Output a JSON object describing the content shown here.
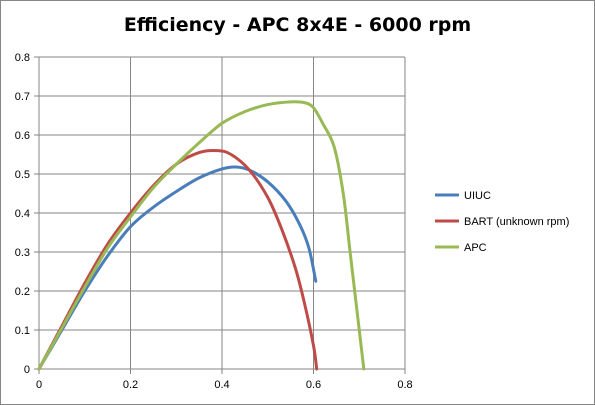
{
  "chart_data": {
    "type": "line",
    "title": "Efficiency - APC 8x4E - 6000 rpm",
    "xlabel": "",
    "ylabel": "",
    "xlim": [
      0,
      0.8
    ],
    "ylim": [
      0,
      0.8
    ],
    "x_ticks": [
      "0",
      "0.2",
      "0.4",
      "0.6",
      "0.8"
    ],
    "y_ticks": [
      "0",
      "0.1",
      "0.2",
      "0.3",
      "0.4",
      "0.5",
      "0.6",
      "0.7",
      "0.8"
    ],
    "grid": true,
    "legend_position": "right",
    "series": [
      {
        "name": "UIUC",
        "color": "#4a7ebb",
        "points": [
          [
            0,
            0
          ],
          [
            0.05,
            0.1
          ],
          [
            0.1,
            0.2
          ],
          [
            0.15,
            0.29
          ],
          [
            0.2,
            0.365
          ],
          [
            0.25,
            0.415
          ],
          [
            0.3,
            0.455
          ],
          [
            0.35,
            0.49
          ],
          [
            0.4,
            0.513
          ],
          [
            0.43,
            0.518
          ],
          [
            0.46,
            0.51
          ],
          [
            0.5,
            0.48
          ],
          [
            0.54,
            0.43
          ],
          [
            0.57,
            0.37
          ],
          [
            0.59,
            0.31
          ],
          [
            0.605,
            0.225
          ]
        ]
      },
      {
        "name": "BART (unknown rpm)",
        "color": "#be4b48",
        "points": [
          [
            0,
            0
          ],
          [
            0.05,
            0.11
          ],
          [
            0.1,
            0.22
          ],
          [
            0.15,
            0.32
          ],
          [
            0.2,
            0.4
          ],
          [
            0.25,
            0.47
          ],
          [
            0.3,
            0.525
          ],
          [
            0.35,
            0.555
          ],
          [
            0.39,
            0.56
          ],
          [
            0.42,
            0.55
          ],
          [
            0.46,
            0.51
          ],
          [
            0.5,
            0.44
          ],
          [
            0.53,
            0.36
          ],
          [
            0.56,
            0.26
          ],
          [
            0.58,
            0.17
          ],
          [
            0.6,
            0.06
          ],
          [
            0.607,
            0
          ]
        ]
      },
      {
        "name": "APC",
        "color": "#98b954",
        "points": [
          [
            0,
            0
          ],
          [
            0.05,
            0.105
          ],
          [
            0.1,
            0.21
          ],
          [
            0.15,
            0.31
          ],
          [
            0.2,
            0.39
          ],
          [
            0.25,
            0.465
          ],
          [
            0.3,
            0.525
          ],
          [
            0.35,
            0.58
          ],
          [
            0.4,
            0.63
          ],
          [
            0.45,
            0.66
          ],
          [
            0.5,
            0.678
          ],
          [
            0.55,
            0.685
          ],
          [
            0.58,
            0.683
          ],
          [
            0.6,
            0.67
          ],
          [
            0.62,
            0.63
          ],
          [
            0.645,
            0.57
          ],
          [
            0.665,
            0.45
          ],
          [
            0.68,
            0.3
          ],
          [
            0.695,
            0.15
          ],
          [
            0.71,
            0
          ]
        ]
      }
    ]
  }
}
